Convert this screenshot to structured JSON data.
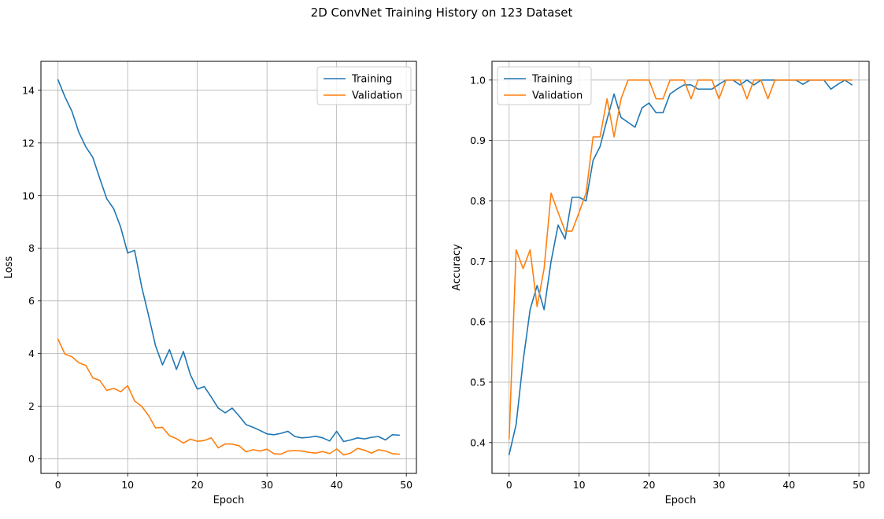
{
  "figure": {
    "suptitle": "2D ConvNet Training History on 123 Dataset"
  },
  "chart_data": [
    {
      "type": "line",
      "title": "",
      "xlabel": "Epoch",
      "ylabel": "Loss",
      "xlim": [
        -2.45,
        51.45
      ],
      "ylim": [
        -0.55,
        15.1
      ],
      "xticks": [
        0,
        10,
        20,
        30,
        40,
        50
      ],
      "yticks": [
        0,
        2,
        4,
        6,
        8,
        10,
        12,
        14
      ],
      "tick_format": "int",
      "grid": true,
      "legend": "upper right",
      "x": [
        0,
        1,
        2,
        3,
        4,
        5,
        6,
        7,
        8,
        9,
        10,
        11,
        12,
        13,
        14,
        15,
        16,
        17,
        18,
        19,
        20,
        21,
        22,
        23,
        24,
        25,
        26,
        27,
        28,
        29,
        30,
        31,
        32,
        33,
        34,
        35,
        36,
        37,
        38,
        39,
        40,
        41,
        42,
        43,
        44,
        45,
        46,
        47,
        48,
        49
      ],
      "series": [
        {
          "name": "Training",
          "color": "#1f77b4",
          "values": [
            14.4,
            13.75,
            13.2,
            12.4,
            11.85,
            11.45,
            10.65,
            9.88,
            9.5,
            8.8,
            7.82,
            7.92,
            6.55,
            5.45,
            4.3,
            3.57,
            4.15,
            3.4,
            4.08,
            3.2,
            2.65,
            2.75,
            2.35,
            1.93,
            1.75,
            1.93,
            1.63,
            1.3,
            1.2,
            1.08,
            0.95,
            0.92,
            0.97,
            1.05,
            0.85,
            0.8,
            0.82,
            0.86,
            0.8,
            0.68,
            1.05,
            0.66,
            0.72,
            0.8,
            0.76,
            0.82,
            0.85,
            0.72,
            0.92,
            0.9
          ]
        },
        {
          "name": "Validation",
          "color": "#ff7f0e",
          "values": [
            4.55,
            3.98,
            3.88,
            3.65,
            3.55,
            3.08,
            2.98,
            2.6,
            2.68,
            2.55,
            2.78,
            2.2,
            2.0,
            1.65,
            1.18,
            1.2,
            0.88,
            0.77,
            0.6,
            0.75,
            0.67,
            0.7,
            0.8,
            0.42,
            0.57,
            0.56,
            0.5,
            0.27,
            0.35,
            0.3,
            0.37,
            0.2,
            0.18,
            0.3,
            0.32,
            0.3,
            0.25,
            0.22,
            0.28,
            0.2,
            0.38,
            0.15,
            0.22,
            0.4,
            0.33,
            0.22,
            0.35,
            0.3,
            0.2,
            0.18
          ]
        }
      ]
    },
    {
      "type": "line",
      "title": "",
      "xlabel": "Epoch",
      "ylabel": "Accuracy",
      "xlim": [
        -2.45,
        51.45
      ],
      "ylim": [
        0.349,
        1.031
      ],
      "xticks": [
        0,
        10,
        20,
        30,
        40,
        50
      ],
      "yticks": [
        0.4,
        0.5,
        0.6,
        0.7,
        0.8,
        0.9,
        1.0
      ],
      "tick_format": "1dp",
      "grid": true,
      "legend": "upper left",
      "x": [
        0,
        1,
        2,
        3,
        4,
        5,
        6,
        7,
        8,
        9,
        10,
        11,
        12,
        13,
        14,
        15,
        16,
        17,
        18,
        19,
        20,
        21,
        22,
        23,
        24,
        25,
        26,
        27,
        28,
        29,
        30,
        31,
        32,
        33,
        34,
        35,
        36,
        37,
        38,
        39,
        40,
        41,
        42,
        43,
        44,
        45,
        46,
        47,
        48,
        49
      ],
      "series": [
        {
          "name": "Training",
          "color": "#1f77b4",
          "values": [
            0.38,
            0.43,
            0.535,
            0.62,
            0.66,
            0.62,
            0.7,
            0.76,
            0.737,
            0.806,
            0.806,
            0.8,
            0.867,
            0.89,
            0.935,
            0.977,
            0.938,
            0.93,
            0.922,
            0.954,
            0.962,
            0.946,
            0.946,
            0.977,
            0.985,
            0.992,
            0.992,
            0.985,
            0.985,
            0.985,
            0.993,
            1.0,
            1.0,
            0.992,
            1.0,
            0.992,
            1.0,
            1.0,
            1.0,
            1.0,
            1.0,
            1.0,
            0.993,
            1.0,
            1.0,
            1.0,
            0.985,
            0.993,
            1.0,
            0.992
          ]
        },
        {
          "name": "Validation",
          "color": "#ff7f0e",
          "values": [
            0.406,
            0.719,
            0.688,
            0.719,
            0.625,
            0.688,
            0.813,
            0.781,
            0.75,
            0.75,
            0.781,
            0.813,
            0.906,
            0.906,
            0.969,
            0.906,
            0.969,
            1.0,
            1.0,
            1.0,
            1.0,
            0.969,
            0.969,
            1.0,
            1.0,
            1.0,
            0.969,
            1.0,
            1.0,
            1.0,
            0.969,
            1.0,
            1.0,
            1.0,
            0.969,
            1.0,
            1.0,
            0.969,
            1.0,
            1.0,
            1.0,
            1.0,
            1.0,
            1.0,
            1.0,
            1.0,
            1.0,
            1.0,
            1.0,
            1.0
          ]
        }
      ]
    }
  ]
}
